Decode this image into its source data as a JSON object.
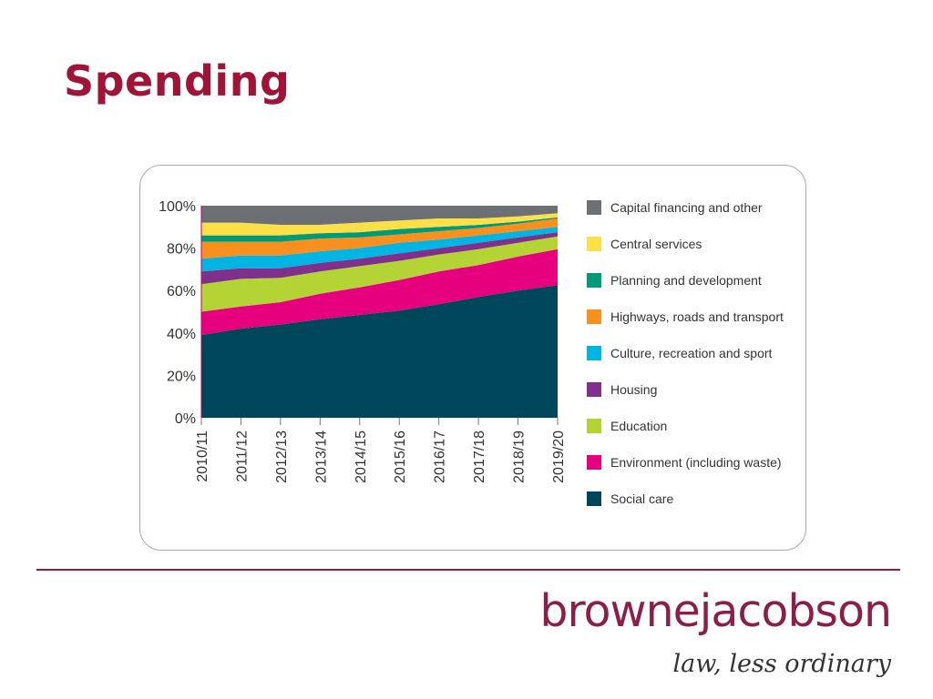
{
  "slide": {
    "title": "Spending",
    "brand": "brownejacobson",
    "tagline": "law, less ordinary"
  },
  "colors": {
    "title": "#a01438",
    "brand": "#8b1f4a",
    "divider": "#a01438"
  },
  "chart_data": {
    "type": "area",
    "stacked": true,
    "title": "",
    "xlabel": "",
    "ylabel": "",
    "categories": [
      "2010/11",
      "2011/12",
      "2012/13",
      "2013/14",
      "2014/15",
      "2015/16",
      "2016/17",
      "2017/18",
      "2018/19",
      "2019/20"
    ],
    "ylim": [
      0,
      100
    ],
    "y_ticks": [
      "0%",
      "20%",
      "40%",
      "60%",
      "80%",
      "100%"
    ],
    "y_tick_values": [
      0,
      20,
      40,
      60,
      80,
      100
    ],
    "grid": false,
    "legend_position": "right",
    "series": [
      {
        "name": "Social care",
        "color": "#00465a",
        "values": [
          39,
          42,
          44,
          46.5,
          48.5,
          50.5,
          53.5,
          57,
          60,
          62.5
        ]
      },
      {
        "name": "Environment (including waste)",
        "color": "#e6007e",
        "values": [
          11,
          10.5,
          10.5,
          12,
          13,
          14.5,
          15.5,
          15,
          16,
          17
        ]
      },
      {
        "name": "Education",
        "color": "#b4d334",
        "values": [
          13,
          13,
          11.5,
          10.5,
          10,
          9,
          8,
          7.5,
          6.5,
          6
        ]
      },
      {
        "name": "Housing",
        "color": "#7f2f8c",
        "values": [
          6,
          5,
          4.5,
          4,
          3.5,
          3.5,
          3,
          3,
          2.5,
          2
        ]
      },
      {
        "name": "Culture, recreation and sport",
        "color": "#00b5e2",
        "values": [
          6,
          6,
          6,
          5.5,
          5,
          5,
          4,
          3.5,
          3,
          2.5
        ]
      },
      {
        "name": "Highways, roads and transport",
        "color": "#f7901e",
        "values": [
          8,
          6.5,
          6.5,
          6,
          5,
          4,
          4,
          3.5,
          3.5,
          4
        ]
      },
      {
        "name": "Planning and development",
        "color": "#009a77",
        "values": [
          3,
          3,
          3,
          2.5,
          2.5,
          2.5,
          2,
          1.5,
          1,
          0.5
        ]
      },
      {
        "name": "Central services",
        "color": "#fde047",
        "values": [
          6,
          6,
          5,
          4,
          4.5,
          4,
          4,
          3,
          2.5,
          2
        ]
      },
      {
        "name": "Capital financing and other",
        "color": "#6c7075",
        "values": [
          8,
          8,
          9,
          9,
          8,
          7,
          6,
          6,
          5,
          3.5
        ]
      }
    ]
  }
}
